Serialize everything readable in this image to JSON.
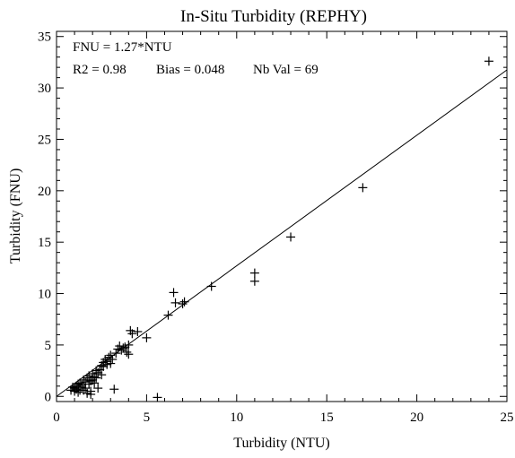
{
  "chart_data": {
    "type": "scatter",
    "title": "In-Situ Turbidity (REPHY)",
    "xlabel": "Turbidity (NTU)",
    "ylabel": "Turbidity (FNU)",
    "xlim": [
      0,
      25
    ],
    "ylim": [
      -0.5,
      35.5
    ],
    "x_ticks": [
      0,
      5,
      10,
      15,
      20,
      25
    ],
    "y_ticks": [
      0,
      5,
      10,
      15,
      20,
      25,
      30,
      35
    ],
    "grid": false,
    "marker": "plus",
    "annotations": [
      "FNU = 1.27*NTU",
      "R2  = 0.98",
      "Bias = 0.048",
      "Nb Val = 69"
    ],
    "fit_line": {
      "slope": 1.27,
      "intercept": 0
    },
    "series": [
      {
        "points": [
          [
            0.8,
            0.6
          ],
          [
            1.0,
            0.8
          ],
          [
            1.1,
            1.0
          ],
          [
            1.2,
            1.2
          ],
          [
            1.0,
            0.5
          ],
          [
            1.3,
            1.3
          ],
          [
            1.4,
            0.9
          ],
          [
            1.5,
            1.6
          ],
          [
            1.5,
            0.6
          ],
          [
            1.6,
            1.4
          ],
          [
            1.7,
            1.8
          ],
          [
            1.7,
            0.3
          ],
          [
            1.8,
            1.2
          ],
          [
            1.8,
            2.0
          ],
          [
            1.9,
            0.5
          ],
          [
            1.9,
            0.2
          ],
          [
            2.0,
            2.2
          ],
          [
            2.0,
            1.6
          ],
          [
            2.1,
            1.9
          ],
          [
            2.2,
            2.5
          ],
          [
            2.3,
            2.3
          ],
          [
            2.3,
            0.8
          ],
          [
            2.4,
            2.6
          ],
          [
            2.5,
            3.0
          ],
          [
            2.6,
            3.3
          ],
          [
            2.7,
            3.6
          ],
          [
            2.8,
            3.1
          ],
          [
            2.9,
            3.8
          ],
          [
            3.0,
            4.0
          ],
          [
            3.1,
            3.6
          ],
          [
            3.2,
            0.7
          ],
          [
            3.3,
            4.2
          ],
          [
            3.5,
            4.9
          ],
          [
            3.6,
            4.5
          ],
          [
            3.8,
            4.8
          ],
          [
            3.9,
            4.3
          ],
          [
            4.0,
            5.0
          ],
          [
            4.0,
            4.1
          ],
          [
            4.1,
            6.4
          ],
          [
            4.2,
            6.1
          ],
          [
            4.5,
            6.3
          ],
          [
            5.0,
            5.7
          ],
          [
            5.6,
            -0.1
          ],
          [
            6.2,
            7.9
          ],
          [
            6.5,
            10.1
          ],
          [
            6.6,
            9.1
          ],
          [
            7.0,
            9.0
          ],
          [
            7.1,
            9.2
          ],
          [
            8.6,
            10.7
          ],
          [
            11.0,
            12.0
          ],
          [
            11.0,
            11.2
          ],
          [
            13.0,
            15.5
          ],
          [
            17.0,
            20.3
          ],
          [
            24.0,
            32.6
          ],
          [
            1.2,
            0.4
          ],
          [
            1.4,
            1.1
          ],
          [
            1.6,
            0.8
          ],
          [
            2.1,
            1.3
          ],
          [
            2.5,
            2.1
          ],
          [
            2.8,
            3.4
          ],
          [
            3.0,
            3.2
          ],
          [
            3.4,
            4.6
          ],
          [
            3.7,
            4.7
          ],
          [
            1.1,
            0.7
          ],
          [
            1.9,
            1.5
          ],
          [
            2.2,
            1.8
          ],
          [
            0.9,
            0.9
          ],
          [
            1.3,
            0.6
          ],
          [
            2.6,
            2.9
          ]
        ]
      }
    ]
  }
}
